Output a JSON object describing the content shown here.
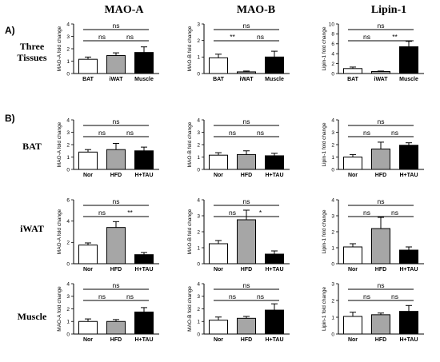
{
  "column_titles": [
    "MAO-A",
    "MAO-B",
    "Lipin-1"
  ],
  "section_labels": [
    "A)",
    "B)"
  ],
  "row_labels": [
    "Three\nTissues",
    "BAT",
    "iWAT",
    "Muscle"
  ],
  "colors": {
    "white": "#ffffff",
    "gray": "#a6a6a6",
    "black": "#000000"
  },
  "chart_data": [
    {
      "id": "a-maoa",
      "row": 0,
      "col": 0,
      "type": "bar",
      "ylabel": "MAO-A fold change",
      "ylim": [
        0,
        4
      ],
      "yticks": [
        0,
        1,
        2,
        3,
        4
      ],
      "categories": [
        "BAT",
        "iWAT",
        "Muscle"
      ],
      "fills": [
        "white",
        "gray",
        "black"
      ],
      "values": [
        1.15,
        1.45,
        1.7
      ],
      "errors": [
        0.18,
        0.22,
        0.45
      ],
      "brackets": [
        {
          "from": 0,
          "to": 2,
          "label": "ns",
          "level": 2
        },
        {
          "from": 0,
          "to": 1,
          "label": "ns",
          "level": 1
        },
        {
          "from": 1,
          "to": 2,
          "label": "ns",
          "level": 1
        }
      ]
    },
    {
      "id": "a-maob",
      "row": 0,
      "col": 1,
      "type": "bar",
      "ylabel": "MAO-B fold change",
      "ylim": [
        0,
        3
      ],
      "yticks": [
        0,
        1,
        2,
        3
      ],
      "categories": [
        "BAT",
        "iWAT",
        "Muscle"
      ],
      "fills": [
        "white",
        "gray",
        "black"
      ],
      "values": [
        0.95,
        0.1,
        1.0
      ],
      "errors": [
        0.22,
        0.05,
        0.35
      ],
      "brackets": [
        {
          "from": 0,
          "to": 2,
          "label": "ns",
          "level": 2
        },
        {
          "from": 0,
          "to": 1,
          "label": "**",
          "level": 1
        },
        {
          "from": 1,
          "to": 2,
          "label": "ns",
          "level": 1
        }
      ]
    },
    {
      "id": "a-lipin",
      "row": 0,
      "col": 2,
      "type": "bar",
      "ylabel": "Lipin-1 fold change",
      "ylim": [
        0,
        10
      ],
      "yticks": [
        0,
        2,
        4,
        6,
        8,
        10
      ],
      "categories": [
        "BAT",
        "iWAT",
        "Muscle"
      ],
      "fills": [
        "white",
        "gray",
        "black"
      ],
      "values": [
        1.0,
        0.4,
        5.4
      ],
      "errors": [
        0.3,
        0.1,
        1.1
      ],
      "brackets": [
        {
          "from": 0,
          "to": 2,
          "label": "ns",
          "level": 2
        },
        {
          "from": 0,
          "to": 1,
          "label": "ns",
          "level": 1
        },
        {
          "from": 1,
          "to": 2,
          "label": "**",
          "level": 1
        }
      ]
    },
    {
      "id": "bat-maoa",
      "row": 1,
      "col": 0,
      "type": "bar",
      "ylabel": "MAO-A fold change",
      "ylim": [
        0,
        4
      ],
      "yticks": [
        0,
        1,
        2,
        3,
        4
      ],
      "categories": [
        "Nor",
        "HFD",
        "H+TAU"
      ],
      "fills": [
        "white",
        "gray",
        "black"
      ],
      "values": [
        1.4,
        1.6,
        1.5
      ],
      "errors": [
        0.2,
        0.5,
        0.3
      ],
      "brackets": [
        {
          "from": 0,
          "to": 2,
          "label": "ns",
          "level": 2
        },
        {
          "from": 0,
          "to": 1,
          "label": "ns",
          "level": 1
        },
        {
          "from": 1,
          "to": 2,
          "label": "ns",
          "level": 1
        }
      ]
    },
    {
      "id": "bat-maob",
      "row": 1,
      "col": 1,
      "type": "bar",
      "ylabel": "MAO-B fold change",
      "ylim": [
        0,
        4
      ],
      "yticks": [
        0,
        1,
        2,
        3,
        4
      ],
      "categories": [
        "Nor",
        "HFD",
        "H+TAU"
      ],
      "fills": [
        "white",
        "gray",
        "black"
      ],
      "values": [
        1.15,
        1.2,
        1.1
      ],
      "errors": [
        0.2,
        0.3,
        0.2
      ],
      "brackets": [
        {
          "from": 0,
          "to": 2,
          "label": "ns",
          "level": 2
        },
        {
          "from": 0,
          "to": 1,
          "label": "ns",
          "level": 1
        },
        {
          "from": 1,
          "to": 2,
          "label": "ns",
          "level": 1
        }
      ]
    },
    {
      "id": "bat-lipin",
      "row": 1,
      "col": 2,
      "type": "bar",
      "ylabel": "Lipin-1 fold change",
      "ylim": [
        0,
        4
      ],
      "yticks": [
        0,
        1,
        2,
        3,
        4
      ],
      "categories": [
        "Nor",
        "HFD",
        "H+TAU"
      ],
      "fills": [
        "white",
        "gray",
        "black"
      ],
      "values": [
        1.0,
        1.65,
        1.95
      ],
      "errors": [
        0.2,
        0.55,
        0.2
      ],
      "brackets": [
        {
          "from": 0,
          "to": 2,
          "label": "ns",
          "level": 2
        },
        {
          "from": 0,
          "to": 1,
          "label": "ns",
          "level": 1
        },
        {
          "from": 1,
          "to": 2,
          "label": "ns",
          "level": 1
        }
      ]
    },
    {
      "id": "iwat-maoa",
      "row": 2,
      "col": 0,
      "type": "bar",
      "ylabel": "MAO-A fold change",
      "ylim": [
        0,
        6
      ],
      "yticks": [
        0,
        2,
        4,
        6
      ],
      "categories": [
        "Nor",
        "HFD",
        "H+TAU"
      ],
      "fills": [
        "white",
        "gray",
        "black"
      ],
      "values": [
        1.75,
        3.4,
        0.85
      ],
      "errors": [
        0.2,
        0.55,
        0.2
      ],
      "brackets": [
        {
          "from": 0,
          "to": 2,
          "label": "ns",
          "level": 2
        },
        {
          "from": 0,
          "to": 1,
          "label": "ns",
          "level": 1
        },
        {
          "from": 1,
          "to": 2,
          "label": "**",
          "level": 1
        }
      ]
    },
    {
      "id": "iwat-maob",
      "row": 2,
      "col": 1,
      "type": "bar",
      "ylabel": "MAO-B fold change",
      "ylim": [
        0,
        4
      ],
      "yticks": [
        0,
        1,
        2,
        3,
        4
      ],
      "categories": [
        "Nor",
        "HFD",
        "H+TAU"
      ],
      "fills": [
        "white",
        "gray",
        "black"
      ],
      "values": [
        1.25,
        2.75,
        0.6
      ],
      "errors": [
        0.2,
        0.6,
        0.2
      ],
      "brackets": [
        {
          "from": 0,
          "to": 2,
          "label": "ns",
          "level": 2
        },
        {
          "from": 0,
          "to": 1,
          "label": "ns",
          "level": 1
        },
        {
          "from": 1,
          "to": 2,
          "label": "*",
          "level": 1
        }
      ]
    },
    {
      "id": "iwat-lipin",
      "row": 2,
      "col": 2,
      "type": "bar",
      "ylabel": "Lipin-1 fold change",
      "ylim": [
        0,
        4
      ],
      "yticks": [
        0,
        1,
        2,
        3,
        4
      ],
      "categories": [
        "Nor",
        "HFD",
        "H+TAU"
      ],
      "fills": [
        "white",
        "gray",
        "black"
      ],
      "values": [
        1.05,
        2.2,
        0.85
      ],
      "errors": [
        0.2,
        0.7,
        0.2
      ],
      "brackets": [
        {
          "from": 0,
          "to": 2,
          "label": "ns",
          "level": 2
        },
        {
          "from": 0,
          "to": 1,
          "label": "ns",
          "level": 1
        },
        {
          "from": 1,
          "to": 2,
          "label": "ns",
          "level": 1
        }
      ]
    },
    {
      "id": "muscle-maoa",
      "row": 3,
      "col": 0,
      "type": "bar",
      "ylabel": "MAO-A fold change",
      "ylim": [
        0,
        4
      ],
      "yticks": [
        0,
        1,
        2,
        3,
        4
      ],
      "categories": [
        "Nor",
        "HFD",
        "H+TAU"
      ],
      "fills": [
        "white",
        "gray",
        "black"
      ],
      "values": [
        1.0,
        1.0,
        1.75
      ],
      "errors": [
        0.2,
        0.15,
        0.35
      ],
      "brackets": [
        {
          "from": 0,
          "to": 2,
          "label": "ns",
          "level": 2
        },
        {
          "from": 0,
          "to": 1,
          "label": "ns",
          "level": 1
        },
        {
          "from": 1,
          "to": 2,
          "label": "ns",
          "level": 1
        }
      ]
    },
    {
      "id": "muscle-maob",
      "row": 3,
      "col": 1,
      "type": "bar",
      "ylabel": "MAO-B fold change",
      "ylim": [
        0,
        4
      ],
      "yticks": [
        0,
        1,
        2,
        3,
        4
      ],
      "categories": [
        "Nor",
        "HFD",
        "H+TAU"
      ],
      "fills": [
        "white",
        "gray",
        "black"
      ],
      "values": [
        1.1,
        1.25,
        1.9
      ],
      "errors": [
        0.25,
        0.15,
        0.5
      ],
      "brackets": [
        {
          "from": 0,
          "to": 2,
          "label": "ns",
          "level": 2
        },
        {
          "from": 0,
          "to": 1,
          "label": "ns",
          "level": 1
        },
        {
          "from": 1,
          "to": 2,
          "label": "ns",
          "level": 1
        }
      ]
    },
    {
      "id": "muscle-lipin",
      "row": 3,
      "col": 2,
      "type": "bar",
      "ylabel": "Lipin-1 fold change",
      "ylim": [
        0,
        3
      ],
      "yticks": [
        0,
        1,
        2,
        3
      ],
      "categories": [
        "Nor",
        "HFD",
        "H+TAU"
      ],
      "fills": [
        "white",
        "gray",
        "black"
      ],
      "values": [
        1.05,
        1.15,
        1.35
      ],
      "errors": [
        0.25,
        0.1,
        0.35
      ],
      "brackets": [
        {
          "from": 0,
          "to": 2,
          "label": "ns",
          "level": 2
        },
        {
          "from": 0,
          "to": 1,
          "label": "ns",
          "level": 1
        },
        {
          "from": 1,
          "to": 2,
          "label": "ns",
          "level": 1
        }
      ]
    }
  ]
}
